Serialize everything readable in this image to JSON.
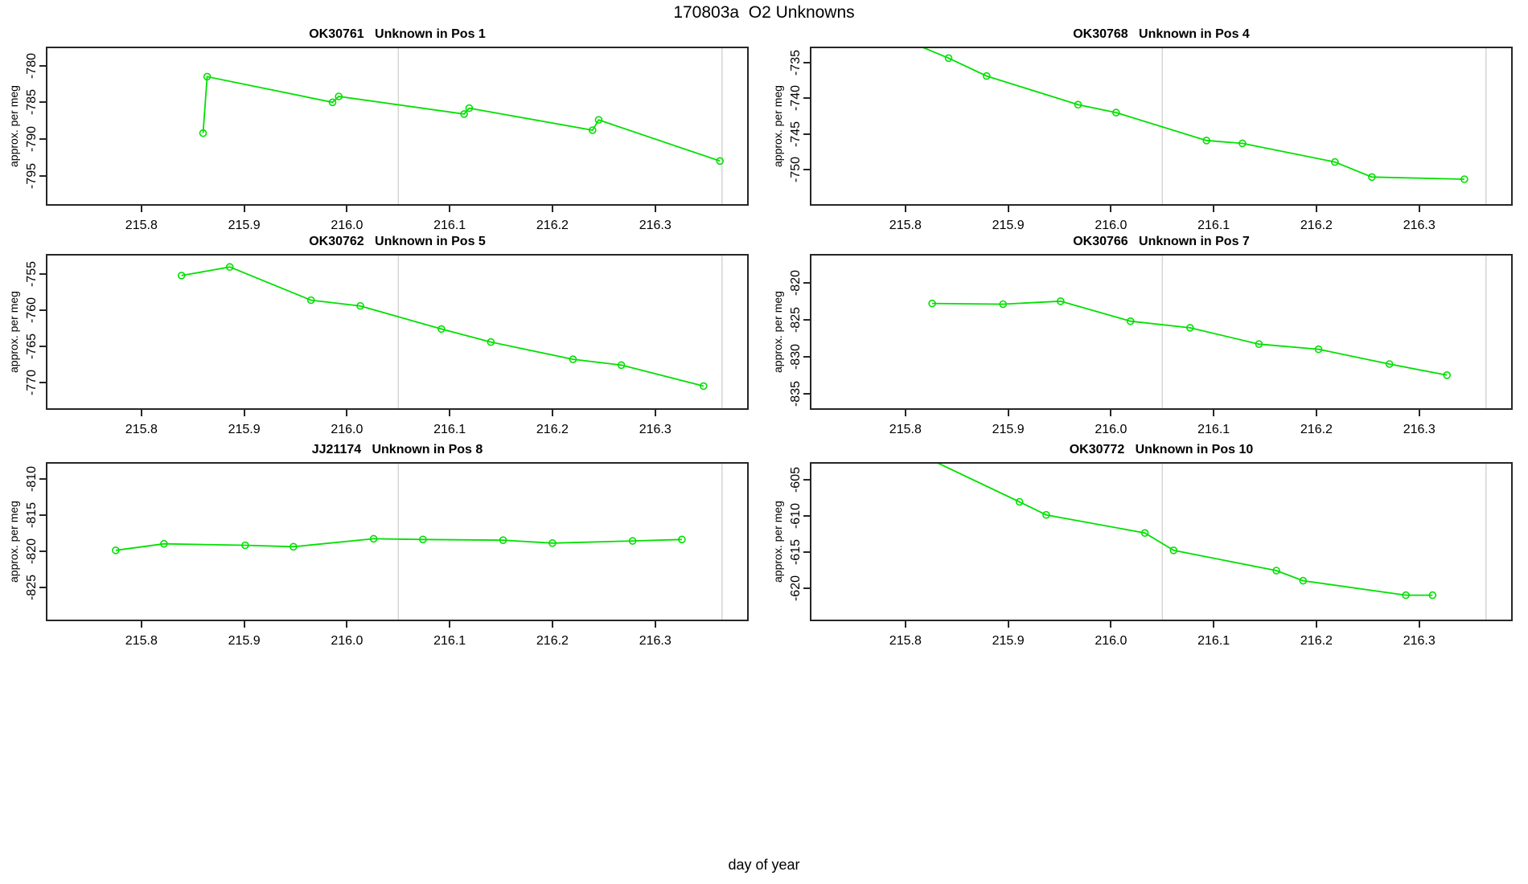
{
  "main_title": "170803a  O2 Unknowns",
  "xlabel": "day of year",
  "ylabel": "approx. per meg",
  "colors": {
    "series": "#00e000",
    "reference_line": "#d4d4d4",
    "axis": "#262626",
    "text": "#000000",
    "background": "#ffffff"
  },
  "x_axis": {
    "tick_labels": [
      "215.8",
      "215.9",
      "216.0",
      "216.1",
      "216.2",
      "216.3"
    ],
    "tick_values": [
      215.8,
      215.9,
      216.0,
      216.1,
      216.2,
      216.3
    ],
    "xlim": [
      215.707,
      216.391
    ],
    "vlines": [
      216.05,
      216.365
    ]
  },
  "chart_data": [
    {
      "type": "line",
      "title": "OK30761   Unknown in Pos 1",
      "sample_id": "OK30761",
      "position": "Pos 1",
      "y_tick_labels": [
        "-780",
        "-785",
        "-790",
        "-795"
      ],
      "y_tick_values": [
        -780,
        -785,
        -790,
        -795
      ],
      "ylim": [
        -799.1,
        -777.4
      ],
      "points": [
        [
          215.86,
          -789.2
        ],
        [
          215.864,
          -781.5
        ],
        [
          215.986,
          -785.0
        ],
        [
          215.992,
          -784.2
        ],
        [
          216.114,
          -786.6
        ],
        [
          216.119,
          -785.8
        ],
        [
          216.239,
          -788.8
        ],
        [
          216.245,
          -787.4
        ],
        [
          216.363,
          -793.0
        ]
      ]
    },
    {
      "type": "line",
      "title": "OK30768   Unknown in Pos 4",
      "sample_id": "OK30768",
      "position": "Pos 4",
      "y_tick_labels": [
        "-735",
        "-740",
        "-745",
        "-750"
      ],
      "y_tick_values": [
        -735,
        -740,
        -745,
        -750
      ],
      "ylim": [
        -755.0,
        -732.8
      ],
      "points": [
        [
          215.8,
          -731.9
        ],
        [
          215.842,
          -734.4
        ],
        [
          215.879,
          -736.9
        ],
        [
          215.968,
          -740.9
        ],
        [
          216.005,
          -742.0
        ],
        [
          216.093,
          -745.9
        ],
        [
          216.128,
          -746.3
        ],
        [
          216.218,
          -748.9
        ],
        [
          216.254,
          -751.0
        ],
        [
          216.344,
          -751.3
        ]
      ]
    },
    {
      "type": "line",
      "title": "OK30762   Unknown in Pos 5",
      "sample_id": "OK30762",
      "position": "Pos 5",
      "y_tick_labels": [
        "-755",
        "-760",
        "-765",
        "-770"
      ],
      "y_tick_values": [
        -755,
        -760,
        -765,
        -770
      ],
      "ylim": [
        -773.8,
        -752.2
      ],
      "points": [
        [
          215.839,
          -755.2
        ],
        [
          215.886,
          -754.0
        ],
        [
          215.965,
          -758.6
        ],
        [
          216.013,
          -759.4
        ],
        [
          216.092,
          -762.6
        ],
        [
          216.14,
          -764.4
        ],
        [
          216.22,
          -766.8
        ],
        [
          216.267,
          -767.6
        ],
        [
          216.347,
          -770.5
        ]
      ]
    },
    {
      "type": "line",
      "title": "OK30766   Unknown in Pos 7",
      "sample_id": "OK30766",
      "position": "Pos 7",
      "y_tick_labels": [
        "-820",
        "-825",
        "-830",
        "-835"
      ],
      "y_tick_values": [
        -820,
        -825,
        -830,
        -835
      ],
      "ylim": [
        -837.2,
        -816.1
      ],
      "points": [
        [
          215.826,
          -822.8
        ],
        [
          215.895,
          -822.9
        ],
        [
          215.951,
          -822.5
        ],
        [
          216.019,
          -825.2
        ],
        [
          216.077,
          -826.1
        ],
        [
          216.144,
          -828.3
        ],
        [
          216.202,
          -829.0
        ],
        [
          216.271,
          -831.0
        ],
        [
          216.327,
          -832.5
        ]
      ]
    },
    {
      "type": "line",
      "title": "JJ21174   Unknown in Pos 8",
      "sample_id": "JJ21174",
      "position": "Pos 8",
      "y_tick_labels": [
        "-810",
        "-815",
        "-820",
        "-825"
      ],
      "y_tick_values": [
        -810,
        -815,
        -820,
        -825
      ],
      "ylim": [
        -829.7,
        -807.7
      ],
      "points": [
        [
          215.775,
          -819.9
        ],
        [
          215.822,
          -819.0
        ],
        [
          215.901,
          -819.2
        ],
        [
          215.948,
          -819.4
        ],
        [
          216.026,
          -818.3
        ],
        [
          216.074,
          -818.4
        ],
        [
          216.152,
          -818.5
        ],
        [
          216.2,
          -818.9
        ],
        [
          216.278,
          -818.6
        ],
        [
          216.326,
          -818.4
        ]
      ]
    },
    {
      "type": "line",
      "title": "OK30772   Unknown in Pos 10",
      "sample_id": "OK30772",
      "position": "Pos 10",
      "y_tick_labels": [
        "-605",
        "-610",
        "-615",
        "-620"
      ],
      "y_tick_values": [
        -605,
        -610,
        -615,
        -620
      ],
      "ylim": [
        -624.6,
        -602.6
      ],
      "points": [
        [
          215.8,
          -600.6
        ],
        [
          215.911,
          -608.1
        ],
        [
          215.937,
          -609.9
        ],
        [
          216.033,
          -612.4
        ],
        [
          216.061,
          -614.8
        ],
        [
          216.161,
          -617.6
        ],
        [
          216.187,
          -619.0
        ],
        [
          216.287,
          -621.0
        ],
        [
          216.313,
          -621.0
        ]
      ]
    }
  ]
}
